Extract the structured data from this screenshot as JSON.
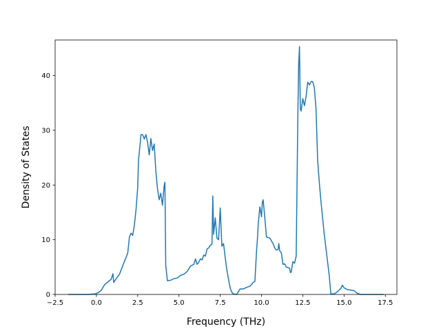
{
  "chart_data": {
    "type": "line",
    "title": "",
    "xlabel": "Frequency (THz)",
    "ylabel": "Density of States",
    "xlim": [
      -2.5,
      18.2
    ],
    "ylim": [
      0,
      46.5
    ],
    "xticks": [
      -2.5,
      0.0,
      2.5,
      5.0,
      7.5,
      10.0,
      12.5,
      15.0,
      17.5
    ],
    "xtick_labels": [
      "−2.5",
      "0.0",
      "2.5",
      "5.0",
      "7.5",
      "10.0",
      "12.5",
      "15.0",
      "17.5"
    ],
    "yticks": [
      0,
      10,
      20,
      30,
      40
    ],
    "ytick_labels": [
      "0",
      "10",
      "20",
      "30",
      "40"
    ],
    "grid": false,
    "legend": "none",
    "series": [
      {
        "color": "#1f77b4",
        "x": [
          -1.7,
          -0.5,
          -0.1,
          0.1,
          0.3,
          0.5,
          0.7,
          0.9,
          1.0,
          1.05,
          1.2,
          1.4,
          1.6,
          1.8,
          1.9,
          2.0,
          2.1,
          2.2,
          2.3,
          2.4,
          2.5,
          2.55,
          2.6,
          2.7,
          2.8,
          2.9,
          3.0,
          3.1,
          3.2,
          3.3,
          3.4,
          3.5,
          3.6,
          3.7,
          3.8,
          3.9,
          4.0,
          4.1,
          4.15,
          4.2,
          4.3,
          4.5,
          4.7,
          4.9,
          5.1,
          5.3,
          5.5,
          5.7,
          5.9,
          6.0,
          6.1,
          6.2,
          6.3,
          6.4,
          6.5,
          6.6,
          6.7,
          6.8,
          6.9,
          7.0,
          7.05,
          7.1,
          7.2,
          7.3,
          7.4,
          7.5,
          7.6,
          7.7,
          7.8,
          7.9,
          8.0,
          8.1,
          8.2,
          8.3,
          8.5,
          8.7,
          8.9,
          9.1,
          9.3,
          9.5,
          9.6,
          9.7,
          9.75,
          9.8,
          9.9,
          10.0,
          10.05,
          10.1,
          10.2,
          10.3,
          10.5,
          10.7,
          10.8,
          10.9,
          11.0,
          11.05,
          11.1,
          11.2,
          11.3,
          11.4,
          11.5,
          11.6,
          11.7,
          11.75,
          11.8,
          11.9,
          12.0,
          12.1,
          12.2,
          12.25,
          12.3,
          12.35,
          12.4,
          12.5,
          12.6,
          12.7,
          12.8,
          12.9,
          13.0,
          13.1,
          13.2,
          13.3,
          13.4,
          13.5,
          13.6,
          13.8,
          14.0,
          14.1,
          14.2,
          14.4,
          14.6,
          14.8,
          14.9,
          15.0,
          15.2,
          15.4,
          15.6,
          15.8,
          16.0,
          16.5,
          17.0,
          17.4
        ],
        "y": [
          0,
          0,
          0.1,
          0.3,
          0.8,
          1.8,
          2.3,
          2.8,
          3.8,
          2.2,
          2.9,
          3.7,
          5.3,
          6.8,
          7.6,
          10.5,
          11.2,
          10.8,
          12.7,
          15.5,
          19.5,
          24.5,
          26.0,
          29.2,
          29.2,
          28.4,
          29.2,
          27.8,
          25.5,
          28.5,
          26.3,
          27.5,
          22.5,
          19.3,
          17.3,
          18.5,
          16.3,
          19.8,
          20.5,
          5.3,
          2.5,
          2.6,
          2.9,
          3.0,
          3.5,
          3.7,
          4.2,
          5.2,
          5.5,
          6.5,
          5.5,
          5.9,
          6.5,
          6.3,
          7.2,
          7.0,
          8.3,
          8.5,
          9.0,
          9.2,
          18.0,
          11.0,
          14.0,
          10.3,
          10.0,
          15.8,
          8.8,
          9.3,
          6.8,
          4.5,
          2.8,
          1.2,
          0.4,
          0.1,
          0,
          1.0,
          1.0,
          1.3,
          1.5,
          2.2,
          2.4,
          8.0,
          10.0,
          12.8,
          16.0,
          14.2,
          16.8,
          17.3,
          14.0,
          10.5,
          10.3,
          9.3,
          8.5,
          8.1,
          8.2,
          9.3,
          8.0,
          7.6,
          5.5,
          5.6,
          5.0,
          4.9,
          4.8,
          4.0,
          4.1,
          6.0,
          5.7,
          7.0,
          32.5,
          42.0,
          45.3,
          34.0,
          33.5,
          35.8,
          34.5,
          36.2,
          38.8,
          38.3,
          38.9,
          38.9,
          37.8,
          34.0,
          24.5,
          20.5,
          17.0,
          11.0,
          6.0,
          3.5,
          0.1,
          0.1,
          0.5,
          1.1,
          1.7,
          1.2,
          0.9,
          0.8,
          0.7,
          0.2,
          0,
          0,
          0,
          0
        ]
      }
    ]
  }
}
